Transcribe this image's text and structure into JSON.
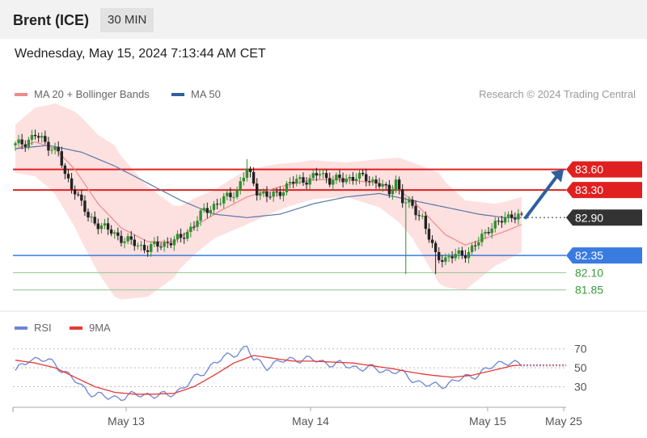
{
  "header": {
    "instrument": "Brent (ICE)",
    "timeframe": "30 MIN"
  },
  "timestamp": "Wednesday, May 15, 2024 7:13:44 AM CET",
  "legend": {
    "ma20": "MA 20 + Bollinger Bands",
    "ma50": "MA 50",
    "ma20_color": "#f08a8a",
    "ma50_color": "#2f5f9f"
  },
  "credit": "Research © 2024 Trading Central",
  "rsi_legend": {
    "rsi": "RSI",
    "ma9": "9MA",
    "rsi_color": "#6b86d6",
    "ma9_color": "#e53935"
  },
  "chart_data": [
    {
      "type": "candlestick",
      "title": "",
      "ylim": [
        81.6,
        84.3
      ],
      "x_tick_labels": [
        "May 13",
        "May 14",
        "May 15",
        "May 25"
      ],
      "levels": [
        {
          "value": 83.6,
          "label": "83.60",
          "kind": "resistance",
          "color": "#e02020"
        },
        {
          "value": 83.3,
          "label": "83.30",
          "kind": "resistance",
          "color": "#e02020"
        },
        {
          "value": 82.9,
          "label": "82.90",
          "kind": "last",
          "color": "#333333"
        },
        {
          "value": 82.35,
          "label": "82.35",
          "kind": "pivot",
          "color": "#3a7be0"
        },
        {
          "value": 82.1,
          "label": "82.10",
          "kind": "support",
          "color": "#3c9a3c"
        },
        {
          "value": 81.85,
          "label": "81.85",
          "kind": "support",
          "color": "#3c9a3c"
        }
      ],
      "close_anchors": [
        [
          0,
          83.95
        ],
        [
          3,
          84.0
        ],
        [
          6,
          84.1
        ],
        [
          10,
          83.95
        ],
        [
          13,
          83.85
        ],
        [
          15,
          83.5
        ],
        [
          18,
          83.3
        ],
        [
          22,
          82.9
        ],
        [
          27,
          82.75
        ],
        [
          32,
          82.6
        ],
        [
          37,
          82.5
        ],
        [
          40,
          82.45
        ],
        [
          43,
          82.5
        ],
        [
          47,
          82.55
        ],
        [
          50,
          82.6
        ],
        [
          54,
          82.8
        ],
        [
          57,
          83.0
        ],
        [
          61,
          83.1
        ],
        [
          64,
          83.2
        ],
        [
          67,
          83.3
        ],
        [
          70,
          83.6
        ],
        [
          73,
          83.3
        ],
        [
          76,
          83.2
        ],
        [
          79,
          83.25
        ],
        [
          82,
          83.35
        ],
        [
          85,
          83.45
        ],
        [
          89,
          83.45
        ],
        [
          92,
          83.55
        ],
        [
          95,
          83.45
        ],
        [
          99,
          83.45
        ],
        [
          103,
          83.5
        ],
        [
          107,
          83.45
        ],
        [
          110,
          83.4
        ],
        [
          113,
          83.25
        ],
        [
          115,
          83.45
        ],
        [
          117,
          83.15
        ],
        [
          120,
          83.05
        ],
        [
          123,
          82.9
        ],
        [
          125,
          82.6
        ],
        [
          127,
          82.35
        ],
        [
          130,
          82.3
        ],
        [
          133,
          82.35
        ],
        [
          137,
          82.4
        ],
        [
          140,
          82.55
        ],
        [
          143,
          82.75
        ],
        [
          147,
          82.85
        ],
        [
          150,
          82.95
        ],
        [
          153,
          82.9
        ]
      ],
      "ma20_anchors": [
        [
          0,
          83.9
        ],
        [
          6,
          84.0
        ],
        [
          12,
          83.9
        ],
        [
          18,
          83.6
        ],
        [
          25,
          83.1
        ],
        [
          32,
          82.75
        ],
        [
          40,
          82.55
        ],
        [
          48,
          82.55
        ],
        [
          55,
          82.8
        ],
        [
          62,
          83.0
        ],
        [
          70,
          83.2
        ],
        [
          80,
          83.35
        ],
        [
          90,
          83.45
        ],
        [
          100,
          83.45
        ],
        [
          110,
          83.4
        ],
        [
          116,
          83.3
        ],
        [
          120,
          83.15
        ],
        [
          125,
          82.9
        ],
        [
          130,
          82.65
        ],
        [
          136,
          82.5
        ],
        [
          142,
          82.6
        ],
        [
          148,
          82.7
        ],
        [
          153,
          82.8
        ]
      ],
      "ma50_anchors": [
        [
          0,
          83.9
        ],
        [
          10,
          83.95
        ],
        [
          20,
          83.85
        ],
        [
          30,
          83.65
        ],
        [
          40,
          83.4
        ],
        [
          50,
          83.15
        ],
        [
          60,
          82.95
        ],
        [
          70,
          82.9
        ],
        [
          80,
          82.95
        ],
        [
          90,
          83.1
        ],
        [
          100,
          83.2
        ],
        [
          110,
          83.25
        ],
        [
          120,
          83.15
        ],
        [
          130,
          83.05
        ],
        [
          140,
          82.95
        ],
        [
          148,
          82.9
        ],
        [
          153,
          82.9
        ]
      ],
      "band_width_anchors": [
        [
          0,
          0.35
        ],
        [
          10,
          0.6
        ],
        [
          20,
          0.9
        ],
        [
          30,
          1.1
        ],
        [
          40,
          0.8
        ],
        [
          50,
          0.45
        ],
        [
          60,
          0.35
        ],
        [
          70,
          0.4
        ],
        [
          85,
          0.3
        ],
        [
          100,
          0.25
        ],
        [
          110,
          0.35
        ],
        [
          120,
          0.55
        ],
        [
          128,
          0.8
        ],
        [
          136,
          0.65
        ],
        [
          145,
          0.45
        ],
        [
          153,
          0.4
        ]
      ],
      "bar_count": 154,
      "forecast": {
        "from": 82.9,
        "to": 83.6,
        "color": "#2f5f9f"
      }
    },
    {
      "type": "line",
      "title": "",
      "ylim": [
        15,
        80
      ],
      "y_ticks": [
        70,
        50,
        30
      ],
      "series": [
        {
          "name": "RSI",
          "color": "#6b86d6",
          "anchors": [
            [
              0,
              45
            ],
            [
              4,
              60
            ],
            [
              8,
              58
            ],
            [
              12,
              55
            ],
            [
              16,
              42
            ],
            [
              20,
              30
            ],
            [
              24,
              22
            ],
            [
              28,
              18
            ],
            [
              34,
              20
            ],
            [
              40,
              22
            ],
            [
              46,
              20
            ],
            [
              50,
              28
            ],
            [
              55,
              40
            ],
            [
              60,
              55
            ],
            [
              65,
              63
            ],
            [
              70,
              72
            ],
            [
              72,
              58
            ],
            [
              76,
              52
            ],
            [
              80,
              56
            ],
            [
              85,
              60
            ],
            [
              90,
              58
            ],
            [
              95,
              55
            ],
            [
              100,
              52
            ],
            [
              105,
              50
            ],
            [
              110,
              48
            ],
            [
              115,
              46
            ],
            [
              119,
              40
            ],
            [
              122,
              35
            ],
            [
              126,
              30
            ],
            [
              130,
              33
            ],
            [
              135,
              38
            ],
            [
              140,
              44
            ],
            [
              145,
              52
            ],
            [
              148,
              58
            ],
            [
              151,
              54
            ],
            [
              153,
              52
            ]
          ]
        },
        {
          "name": "9MA",
          "color": "#e53935",
          "anchors": [
            [
              0,
              58
            ],
            [
              6,
              55
            ],
            [
              12,
              50
            ],
            [
              18,
              40
            ],
            [
              24,
              30
            ],
            [
              30,
              24
            ],
            [
              36,
              22
            ],
            [
              42,
              22
            ],
            [
              48,
              23
            ],
            [
              54,
              30
            ],
            [
              60,
              42
            ],
            [
              66,
              55
            ],
            [
              72,
              63
            ],
            [
              78,
              60
            ],
            [
              84,
              57
            ],
            [
              90,
              57
            ],
            [
              96,
              56
            ],
            [
              102,
              55
            ],
            [
              108,
              52
            ],
            [
              114,
              49
            ],
            [
              120,
              45
            ],
            [
              126,
              42
            ],
            [
              132,
              40
            ],
            [
              138,
              42
            ],
            [
              144,
              47
            ],
            [
              150,
              52
            ],
            [
              153,
              53
            ]
          ]
        }
      ]
    }
  ]
}
